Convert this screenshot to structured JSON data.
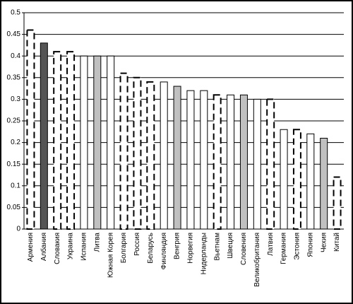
{
  "chart_data": {
    "type": "bar",
    "categories": [
      "Армения",
      "Албания",
      "Словакия",
      "Украина",
      "Испания",
      "Литва",
      "Южная Корея",
      "Болгария",
      "Россия",
      "Беларусь",
      "Финляндия",
      "Венгрия",
      "Норвегия",
      "Нидерланды",
      "Вьетнам",
      "Швеция",
      "Словения",
      "Великобритания",
      "Латвия",
      "Германия",
      "Эстония",
      "Япония",
      "Чехия",
      "Китай"
    ],
    "values": [
      0.46,
      0.43,
      0.41,
      0.41,
      0.4,
      0.4,
      0.4,
      0.36,
      0.35,
      0.34,
      0.34,
      0.33,
      0.32,
      0.32,
      0.31,
      0.31,
      0.31,
      0.3,
      0.3,
      0.23,
      0.23,
      0.22,
      0.21,
      0.12
    ],
    "colors": [
      "#ffffff",
      "#555555",
      "#ffffff",
      "#ffffff",
      "#ffffff",
      "#c0c0c0",
      "#ffffff",
      "#ffffff",
      "#ffffff",
      "#ffffff",
      "#ffffff",
      "#c0c0c0",
      "#ffffff",
      "#ffffff",
      "#ffffff",
      "#ffffff",
      "#c0c0c0",
      "#ffffff",
      "#ffffff",
      "#ffffff",
      "#ffffff",
      "#ffffff",
      "#c0c0c0",
      "#ffffff"
    ],
    "outlines": [
      "dashed",
      "solid",
      "dashed",
      "dashed",
      "solid",
      "solid",
      "solid",
      "dashed",
      "dashed",
      "dashed",
      "solid",
      "solid",
      "solid",
      "solid",
      "dashed",
      "solid",
      "solid",
      "solid",
      "dashed",
      "solid",
      "dashed",
      "solid",
      "solid",
      "dashed"
    ],
    "ylim": [
      0,
      0.5
    ],
    "yticks": [
      0,
      0.05,
      0.1,
      0.15,
      0.2,
      0.25,
      0.3,
      0.35,
      0.4,
      0.45,
      0.5
    ],
    "grid": true
  }
}
